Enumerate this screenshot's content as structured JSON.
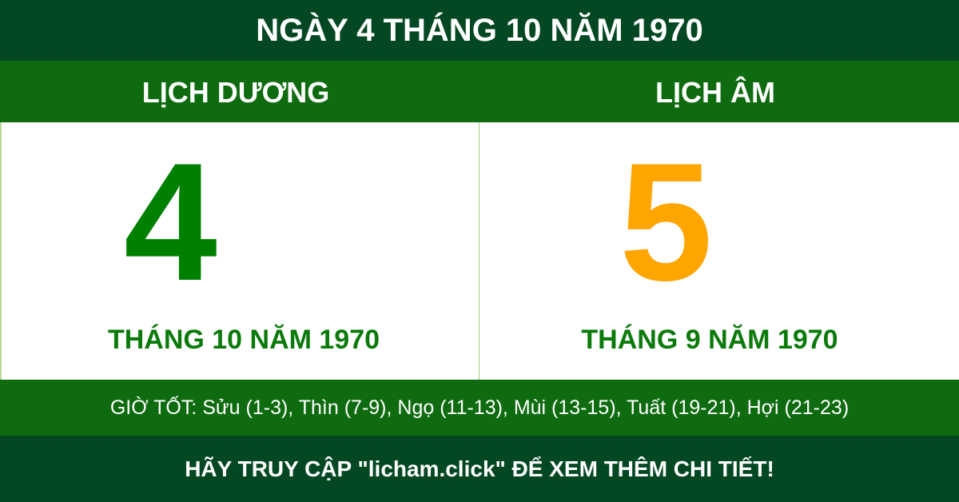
{
  "header": {
    "title": "NGÀY 4 THÁNG 10 NĂM 1970"
  },
  "solar": {
    "label": "LỊCH DƯƠNG",
    "day": "4",
    "month_year": "THÁNG 10 NĂM 1970"
  },
  "lunar": {
    "label": "LỊCH ÂM",
    "day": "5",
    "month_year": "THÁNG 9 NĂM 1970"
  },
  "good_hours": "GIỜ TỐT: Sửu (1-3), Thìn (7-9), Ngọ (11-13), Mùi (13-15), Tuất (19-21), Hợi (21-23)",
  "footer": {
    "text": "HÃY TRUY CẬP \"licham.click\" ĐỂ XEM THÊM CHI TIẾT!"
  },
  "colors": {
    "dark_green": "#034822",
    "green": "#0f6b10",
    "solar_day": "#008000",
    "lunar_day": "#ffa500"
  }
}
